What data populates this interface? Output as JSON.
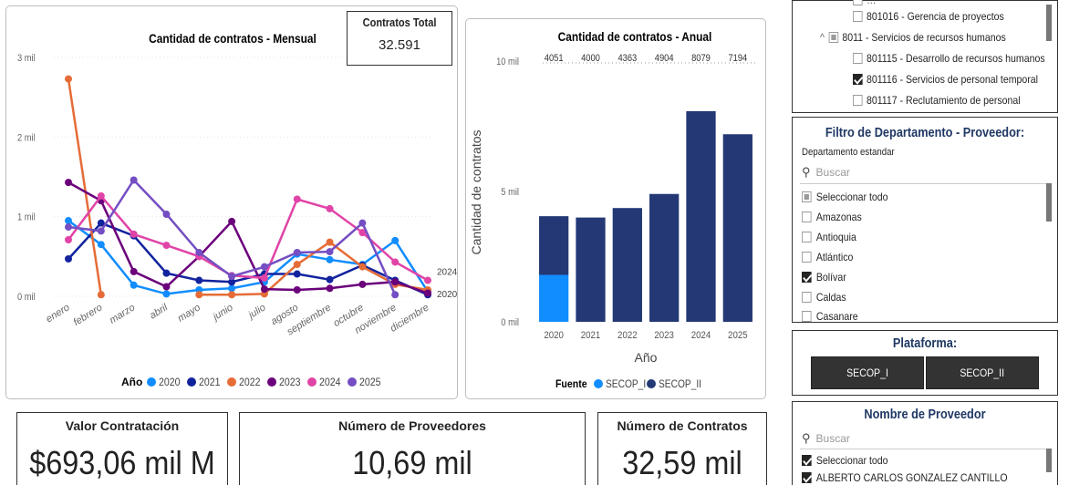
{
  "monthly_chart": {
    "title": "Cantidad de contratos - Mensual",
    "legend_title": "Año",
    "end_labels": [
      "2024",
      "2020"
    ]
  },
  "annual_chart": {
    "title": "Cantidad de contratos - Anual",
    "legend_title": "Fuente",
    "ylabel": "Cantidad de contratos",
    "xlabel": "Año"
  },
  "total_card": {
    "label": "Contratos Total",
    "value": "32.591"
  },
  "kpis": {
    "valor": {
      "label": "Valor Contratación",
      "value": "$693,06 mil M"
    },
    "proveedores": {
      "label": "Número de Proveedores",
      "value": "10,69 mil"
    },
    "contratos": {
      "label": "Número de Contratos",
      "value": "32,59 mil"
    }
  },
  "tree_panel": {
    "items": [
      {
        "label": "801016 - Gerencia de proyectos",
        "state": "unchecked",
        "indent": 2
      },
      {
        "label": "8011 - Servicios de recursos humanos",
        "state": "partial",
        "indent": 1,
        "expander": "^"
      },
      {
        "label": "801115 - Desarrollo de recursos humanos",
        "state": "unchecked",
        "indent": 2
      },
      {
        "label": "801116 - Servicios de personal temporal",
        "state": "checked",
        "indent": 2
      },
      {
        "label": "801117 - Reclutamiento de personal",
        "state": "unchecked",
        "indent": 2
      }
    ]
  },
  "dept_panel": {
    "title": "Filtro de Departamento - Proveedor:",
    "field_label": "Departamento estandar",
    "search_placeholder": "Buscar",
    "items": [
      {
        "label": "Seleccionar todo",
        "state": "partial"
      },
      {
        "label": "Amazonas",
        "state": "unchecked"
      },
      {
        "label": "Antioquia",
        "state": "unchecked"
      },
      {
        "label": "Atlántico",
        "state": "unchecked"
      },
      {
        "label": "Bolívar",
        "state": "checked"
      },
      {
        "label": "Caldas",
        "state": "unchecked"
      },
      {
        "label": "Casanare",
        "state": "unchecked"
      }
    ]
  },
  "platform_panel": {
    "title": "Plataforma:",
    "buttons": [
      "SECOP_I",
      "SECOP_II"
    ]
  },
  "provider_panel": {
    "title": "Nombre de Proveedor",
    "search_placeholder": "Buscar",
    "items": [
      {
        "label": "Seleccionar todo",
        "state": "checked"
      },
      {
        "label": "ALBERTO CARLOS GONZALEZ CANTILLO",
        "state": "checked"
      }
    ]
  },
  "chart_data": [
    {
      "type": "line",
      "title": "Cantidad de contratos - Mensual",
      "categories": [
        "enero",
        "febrero",
        "marzo",
        "abril",
        "mayo",
        "junio",
        "julio",
        "agosto",
        "septiembre",
        "octubre",
        "noviembre",
        "diciembre"
      ],
      "y_ticks": [
        "0 mil",
        "1 mil",
        "2 mil",
        "3 mil"
      ],
      "ylim": [
        0,
        3000
      ],
      "legend_position": "bottom",
      "series": [
        {
          "name": "2020",
          "color": "#118DFF",
          "values": [
            950,
            650,
            140,
            30,
            80,
            100,
            180,
            530,
            460,
            400,
            700,
            60
          ]
        },
        {
          "name": "2021",
          "color": "#12239E",
          "values": [
            470,
            920,
            760,
            290,
            200,
            180,
            280,
            280,
            210,
            390,
            200,
            20
          ]
        },
        {
          "name": "2022",
          "color": "#E66C37",
          "values": [
            2730,
            20,
            null,
            null,
            20,
            20,
            30,
            400,
            680,
            370,
            150,
            80
          ]
        },
        {
          "name": "2023",
          "color": "#6B007B",
          "values": [
            1430,
            1200,
            310,
            120,
            500,
            940,
            90,
            80,
            100,
            150,
            180,
            40
          ]
        },
        {
          "name": "2024",
          "color": "#E044A7",
          "values": [
            710,
            1260,
            780,
            640,
            500,
            260,
            230,
            1220,
            1100,
            800,
            430,
            200
          ]
        },
        {
          "name": "2025",
          "color": "#744EC2",
          "values": [
            870,
            820,
            1460,
            1030,
            550,
            250,
            370,
            550,
            560,
            920,
            20,
            null
          ]
        }
      ]
    },
    {
      "type": "bar",
      "title": "Cantidad de contratos - Anual",
      "xlabel": "Año",
      "ylabel": "Cantidad de contratos",
      "categories": [
        "2020",
        "2021",
        "2022",
        "2023",
        "2024",
        "2025"
      ],
      "totals": [
        4051,
        4000,
        4363,
        4904,
        8079,
        7194
      ],
      "total_labels": [
        "4051",
        "4000",
        "4363",
        "4904",
        "8079",
        "7194"
      ],
      "y_ticks": [
        "0 mil",
        "5 mil",
        "10 mil"
      ],
      "ylim": [
        0,
        10000
      ],
      "legend_position": "bottom",
      "series": [
        {
          "name": "SECOP_I",
          "color": "#118DFF",
          "values": [
            1800,
            0,
            0,
            0,
            0,
            0
          ]
        },
        {
          "name": "SECOP_II",
          "color": "#233875",
          "values": [
            2251,
            4000,
            4363,
            4904,
            8079,
            7194
          ]
        }
      ]
    }
  ]
}
